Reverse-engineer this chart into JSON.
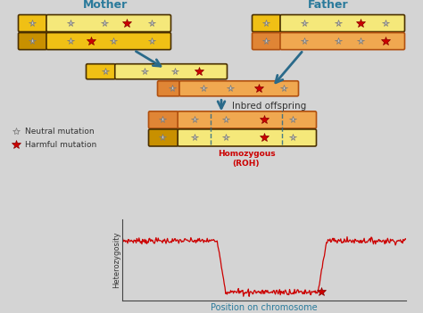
{
  "bg_color": "#d4d4d4",
  "title_color": "#2a7a9b",
  "arrow_color": "#2a6a8a",
  "mother_label": "Mother",
  "father_label": "Father",
  "inbred_label": "Inbred offspring",
  "neutral_label": "Neutral mutation",
  "harmful_label": "Harmful mutation",
  "homozygous_label": "Homozygous\n(ROH)",
  "xlabel": "Position on chromosome",
  "ylabel": "Heterozygosity",
  "chr": {
    "yl": "#f5e87a",
    "ym": "#f0c015",
    "yd": "#c89000",
    "ol": "#f0a850",
    "om": "#e08535",
    "od": "#b05010",
    "border_dark": "#4a3000"
  }
}
